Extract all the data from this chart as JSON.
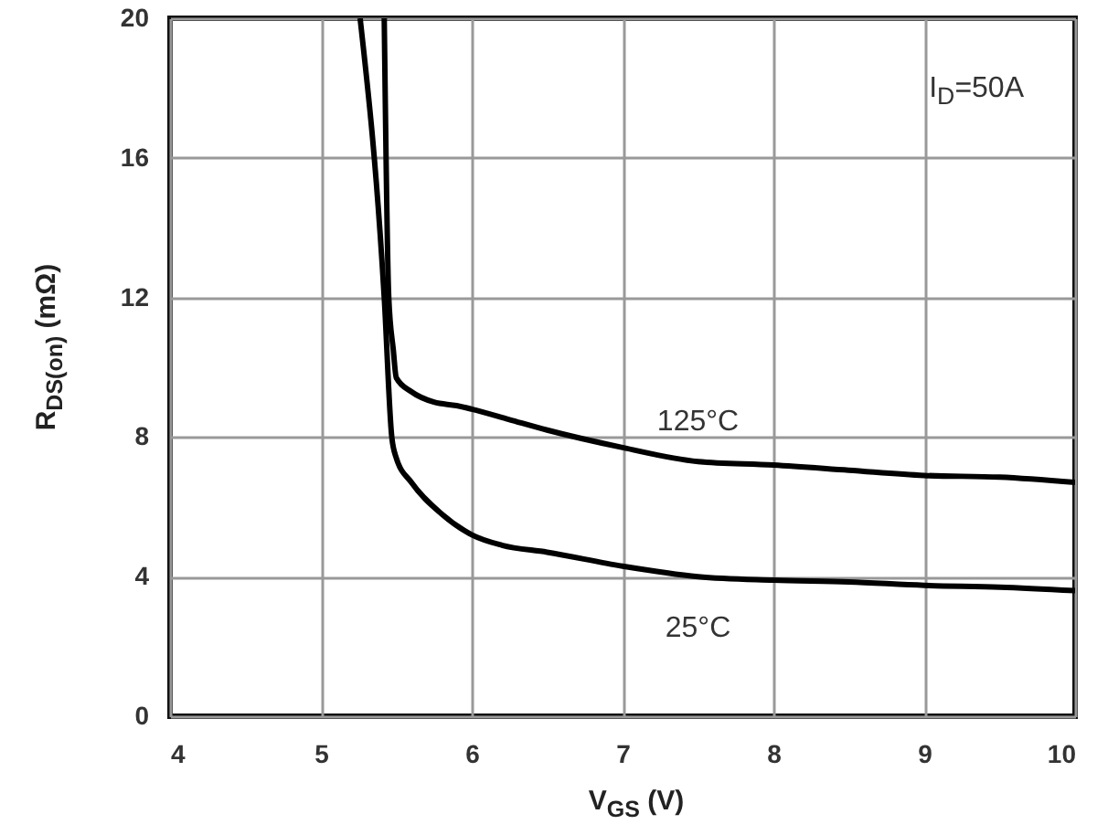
{
  "chart_data": {
    "type": "line",
    "xlabel": "V$_{GS}$ (V)",
    "ylabel": "R$_{DS(on)}$ (mΩ)",
    "annotations": [
      "I$_{D}$=50A"
    ],
    "series": [
      {
        "name": "125°C",
        "color": "#000000",
        "x": [
          5.42,
          5.45,
          5.48,
          5.5,
          5.6,
          5.75,
          5.9,
          6.0,
          6.25,
          6.5,
          7.0,
          7.5,
          8.0,
          8.5,
          9.0,
          9.5,
          10.0
        ],
        "values": [
          20,
          12,
          10.5,
          9.7,
          9.3,
          9.0,
          8.9,
          8.8,
          8.5,
          8.2,
          7.7,
          7.3,
          7.2,
          7.05,
          6.9,
          6.85,
          6.7
        ]
      },
      {
        "name": "25°C",
        "color": "#000000",
        "x": [
          5.26,
          5.42,
          5.47,
          5.5,
          5.6,
          5.8,
          6.0,
          6.2,
          6.5,
          7.0,
          7.5,
          8.0,
          8.5,
          9.0,
          9.5,
          10.0
        ],
        "values": [
          20,
          12,
          8,
          7.4,
          6.7,
          5.8,
          5.2,
          4.9,
          4.7,
          4.3,
          4.0,
          3.9,
          3.85,
          3.75,
          3.7,
          3.6
        ]
      }
    ],
    "xlim": [
      4,
      10
    ],
    "xticks": [
      4,
      5,
      6,
      7,
      8,
      9,
      10
    ],
    "ylim": [
      0,
      20
    ],
    "yticks": [
      0,
      4,
      8,
      12,
      16,
      20
    ],
    "grid": true,
    "line_style": "solid"
  }
}
